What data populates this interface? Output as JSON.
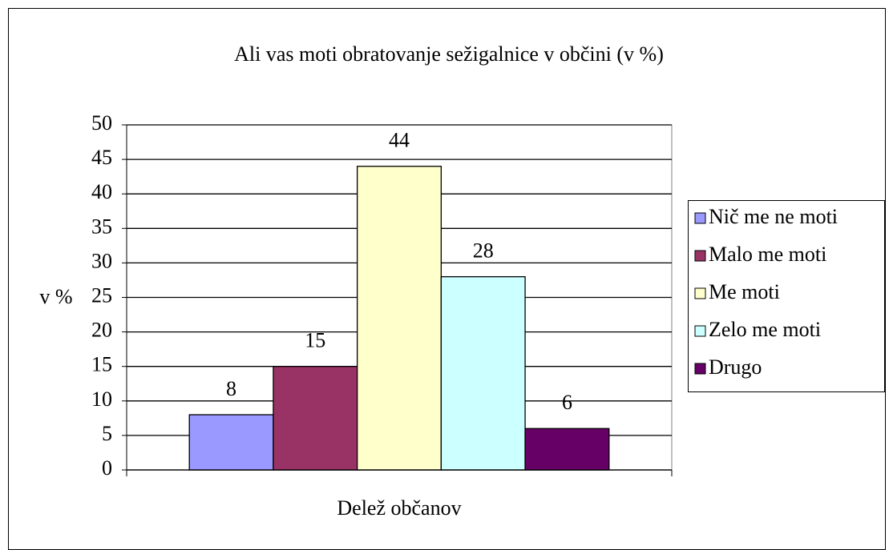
{
  "chart_data": {
    "type": "bar",
    "title": "Ali vas moti obratovanje sežigalnice v občini (v %)",
    "y_label": "v %",
    "categories": [
      "Delež občanov"
    ],
    "series": [
      {
        "name": "Nič me ne moti",
        "color": "#9999ff",
        "values": [
          8
        ]
      },
      {
        "name": "Malo me moti",
        "color": "#993366",
        "values": [
          15
        ]
      },
      {
        "name": "Me moti",
        "color": "#ffffcc",
        "values": [
          44
        ]
      },
      {
        "name": "Zelo me moti",
        "color": "#ccffff",
        "values": [
          28
        ]
      },
      {
        "name": "Drugo",
        "color": "#660066",
        "values": [
          6
        ]
      }
    ],
    "ylim": [
      0,
      50
    ],
    "yticks": [
      0,
      5,
      10,
      15,
      20,
      25,
      30,
      35,
      40,
      45,
      50
    ],
    "grid": true,
    "legend": "right"
  }
}
